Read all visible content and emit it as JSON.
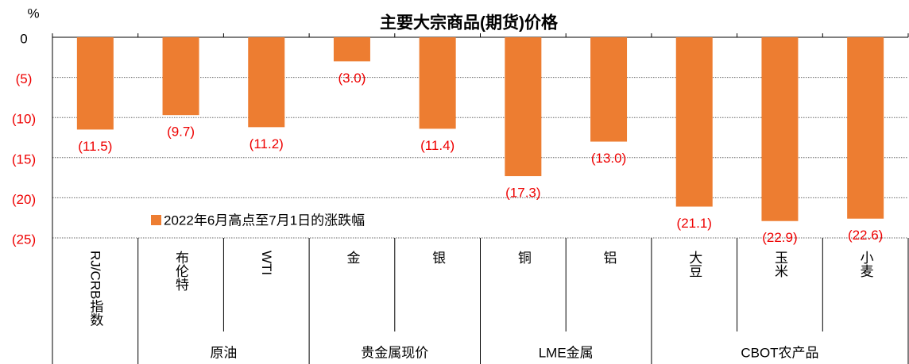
{
  "chart_data": {
    "type": "bar",
    "title": "主要大宗商品(期货)价格",
    "y_label": "%",
    "categories": [
      "RJ/CRB指数",
      "布伦特",
      "WTI",
      "金",
      "银",
      "铜",
      "铝",
      "大豆",
      "玉米",
      "小麦"
    ],
    "groups": [
      {
        "label": "原油",
        "start": 1,
        "end": 2
      },
      {
        "label": "贵金属现价",
        "start": 3,
        "end": 4
      },
      {
        "label": "LME金属",
        "start": 5,
        "end": 6
      },
      {
        "label": "CBOT农产品",
        "start": 7,
        "end": 9
      }
    ],
    "series": [
      {
        "name": "2022年6月高点至7月1日的涨跌幅",
        "color": "#ed7d31",
        "values": [
          -11.5,
          -9.7,
          -11.2,
          -3.0,
          -11.4,
          -17.3,
          -13.0,
          -21.1,
          -22.9,
          -22.6
        ],
        "value_labels": [
          "(11.5)",
          "(9.7)",
          "(11.2)",
          "(3.0)",
          "(11.4)",
          "(17.3)",
          "(13.0)",
          "(21.1)",
          "(22.9)",
          "(22.6)"
        ]
      }
    ],
    "ylim": [
      -25,
      0
    ],
    "yticks": [
      0,
      {
        "value": -5,
        "label": "(5)"
      },
      {
        "value": -10,
        "label": "(10)"
      },
      {
        "value": -15,
        "label": "(15)"
      },
      {
        "value": -20,
        "label": "(20)"
      },
      {
        "value": -25,
        "label": "(25)"
      }
    ],
    "grid": true
  }
}
